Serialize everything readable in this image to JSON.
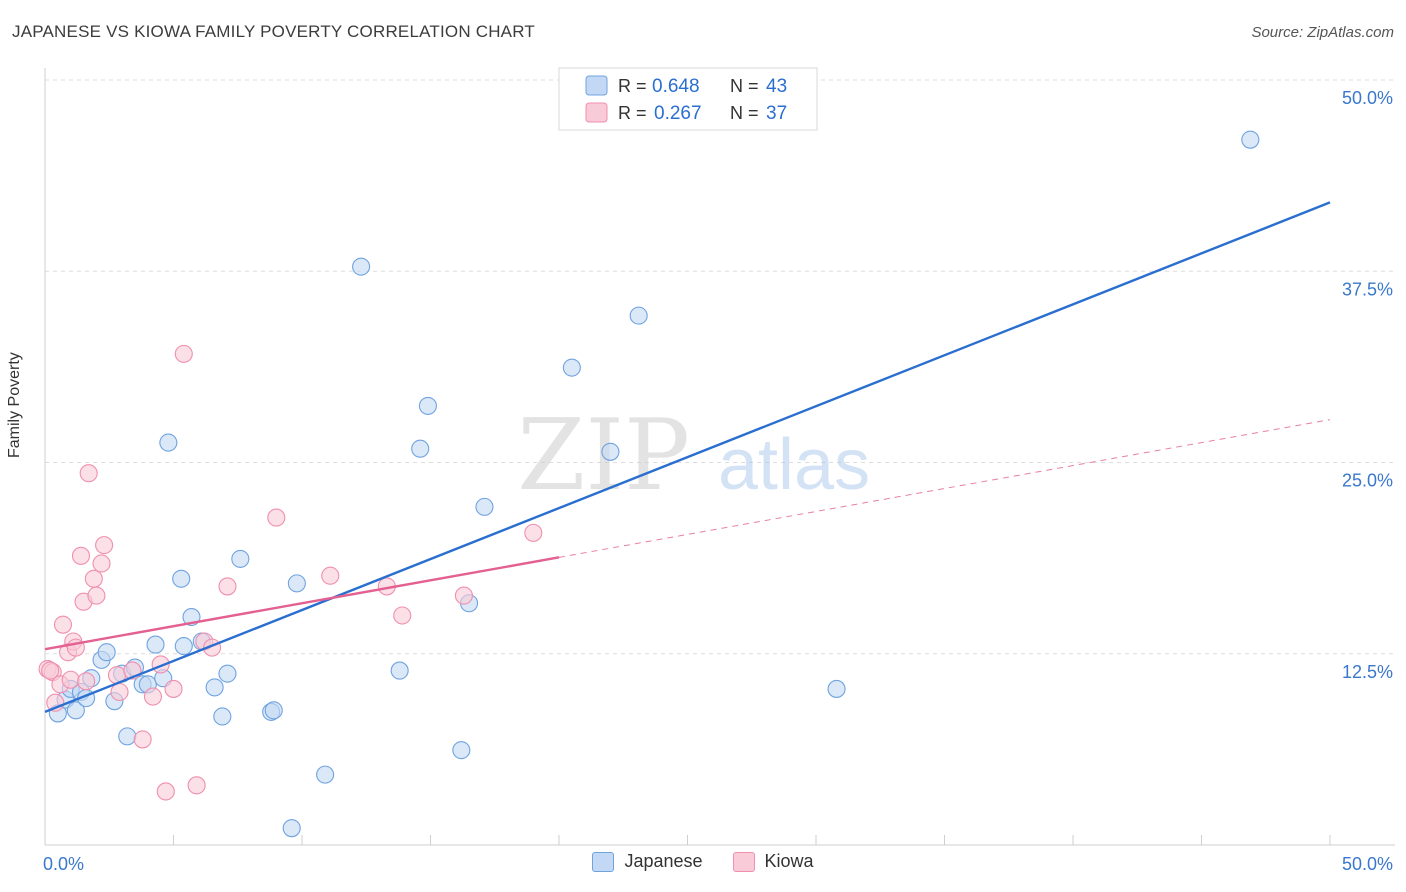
{
  "title": "JAPANESE VS KIOWA FAMILY POVERTY CORRELATION CHART",
  "source": "Source: ZipAtlas.com",
  "watermark": {
    "zip": "ZIP",
    "atlas": "atlas"
  },
  "chart_data": {
    "type": "scatter",
    "title": "JAPANESE VS KIOWA FAMILY POVERTY CORRELATION CHART",
    "xlabel": "",
    "ylabel": "Family Poverty",
    "xlim": [
      0,
      50
    ],
    "ylim": [
      0,
      50
    ],
    "x_tick_labels": [
      "0.0%",
      "50.0%"
    ],
    "y_ticks": [
      12.5,
      25.0,
      37.5,
      50.0
    ],
    "y_tick_labels": [
      "12.5%",
      "25.0%",
      "37.5%",
      "50.0%"
    ],
    "grid": true,
    "legend_stats": [
      {
        "r_label": "R =",
        "r": "0.648",
        "n_label": "N =",
        "n": "43"
      },
      {
        "r_label": "R =",
        "r": "0.267",
        "n_label": "N =",
        "n": "37"
      }
    ],
    "series": [
      {
        "name": "Japanese",
        "color": "#6fa3e0",
        "fill": "#c3d8f4",
        "line_color": "#2a6fd0",
        "trend": {
          "x0": 0.0,
          "y0": 8.7,
          "x1": 50.0,
          "y1": 42.0,
          "dashed_from": null
        },
        "points": [
          [
            0.5,
            8.6
          ],
          [
            0.8,
            9.5
          ],
          [
            1.0,
            10.2
          ],
          [
            1.2,
            8.8
          ],
          [
            1.4,
            10.0
          ],
          [
            1.6,
            9.6
          ],
          [
            1.8,
            10.9
          ],
          [
            2.2,
            12.1
          ],
          [
            2.4,
            12.6
          ],
          [
            2.7,
            9.4
          ],
          [
            3.0,
            11.2
          ],
          [
            3.2,
            7.1
          ],
          [
            3.5,
            11.6
          ],
          [
            3.8,
            10.5
          ],
          [
            4.0,
            10.5
          ],
          [
            4.3,
            13.1
          ],
          [
            4.6,
            10.9
          ],
          [
            4.8,
            26.3
          ],
          [
            5.3,
            17.4
          ],
          [
            5.4,
            13.0
          ],
          [
            5.7,
            14.9
          ],
          [
            6.1,
            13.3
          ],
          [
            6.6,
            10.3
          ],
          [
            6.9,
            8.4
          ],
          [
            7.1,
            11.2
          ],
          [
            7.6,
            18.7
          ],
          [
            8.8,
            8.7
          ],
          [
            8.9,
            8.8
          ],
          [
            9.6,
            1.1
          ],
          [
            9.8,
            17.1
          ],
          [
            10.9,
            4.6
          ],
          [
            12.3,
            37.8
          ],
          [
            13.8,
            11.4
          ],
          [
            14.6,
            25.9
          ],
          [
            14.9,
            28.7
          ],
          [
            16.2,
            6.2
          ],
          [
            16.5,
            15.8
          ],
          [
            17.1,
            22.1
          ],
          [
            20.5,
            31.2
          ],
          [
            22.0,
            25.7
          ],
          [
            23.1,
            34.6
          ],
          [
            30.8,
            10.2
          ],
          [
            46.9,
            46.1
          ]
        ]
      },
      {
        "name": "Kiowa",
        "color": "#f08fae",
        "fill": "#f9cbd9",
        "line_color": "#e46090",
        "trend": {
          "x0": 0.0,
          "y0": 12.8,
          "x1": 50.0,
          "y1": 27.8,
          "dashed_from": 20.0
        },
        "points": [
          [
            0.1,
            11.5
          ],
          [
            0.3,
            11.3
          ],
          [
            0.4,
            9.3
          ],
          [
            0.6,
            10.5
          ],
          [
            0.7,
            14.4
          ],
          [
            0.9,
            12.6
          ],
          [
            1.0,
            10.8
          ],
          [
            1.1,
            13.3
          ],
          [
            1.2,
            12.9
          ],
          [
            1.4,
            18.9
          ],
          [
            1.5,
            15.9
          ],
          [
            1.6,
            10.7
          ],
          [
            1.7,
            24.3
          ],
          [
            1.9,
            17.4
          ],
          [
            2.0,
            16.3
          ],
          [
            2.2,
            18.4
          ],
          [
            2.3,
            19.6
          ],
          [
            2.8,
            11.1
          ],
          [
            2.9,
            10.0
          ],
          [
            3.4,
            11.4
          ],
          [
            3.8,
            6.9
          ],
          [
            4.2,
            9.7
          ],
          [
            4.5,
            11.8
          ],
          [
            4.7,
            3.5
          ],
          [
            5.0,
            10.2
          ],
          [
            5.4,
            32.1
          ],
          [
            5.9,
            3.9
          ],
          [
            6.2,
            13.3
          ],
          [
            6.5,
            12.9
          ],
          [
            7.1,
            16.9
          ],
          [
            9.0,
            21.4
          ],
          [
            11.1,
            17.6
          ],
          [
            13.3,
            16.9
          ],
          [
            13.9,
            15.0
          ],
          [
            16.3,
            16.3
          ],
          [
            19.0,
            20.4
          ],
          [
            0.2,
            11.4
          ]
        ]
      }
    ]
  }
}
